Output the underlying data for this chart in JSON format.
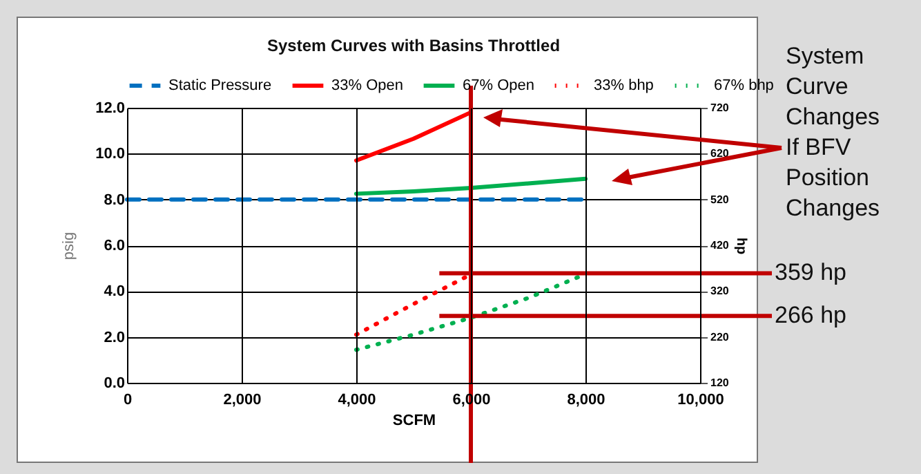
{
  "chart_data": {
    "type": "line",
    "title": "System Curves with Basins Throttled",
    "xlabel": "SCFM",
    "ylabel": "psig",
    "y2label": "hp",
    "xlim": [
      0,
      10000
    ],
    "xticks": [
      0,
      {
        "value": 2000,
        "label": "2,000"
      },
      {
        "value": 4000,
        "label": "4,000"
      },
      {
        "value": 6000,
        "label": "6,000"
      },
      {
        "value": 8000,
        "label": "8,000"
      },
      {
        "value": 10000,
        "label": "10,000"
      }
    ],
    "ylim": [
      0,
      12
    ],
    "yticks": [
      {
        "value": 0,
        "label": "0.0"
      },
      {
        "value": 2,
        "label": "2.0"
      },
      {
        "value": 4,
        "label": "4.0"
      },
      {
        "value": 6,
        "label": "6.0"
      },
      {
        "value": 8,
        "label": "8.0"
      },
      {
        "value": 10,
        "label": "10.0"
      },
      {
        "value": 12,
        "label": "12.0"
      }
    ],
    "y2lim": [
      120,
      720
    ],
    "y2ticks": [
      120,
      220,
      320,
      420,
      520,
      620,
      720
    ],
    "grid": true,
    "legend": "top",
    "marker": "none",
    "series": [
      {
        "name": "Static Pressure",
        "color": "#0070c0",
        "line_style": "dashed",
        "x": [
          0,
          8000
        ],
        "values": [
          8,
          8
        ]
      },
      {
        "name": "33% Open",
        "color": "#ff0000",
        "line_style": "solid",
        "x": [
          4000,
          5000,
          6000
        ],
        "values": [
          9.7,
          10.65,
          11.8
        ]
      },
      {
        "name": "67% Open",
        "color": "#00b050",
        "line_style": "solid",
        "x": [
          4000,
          5000,
          6000,
          7000,
          8000
        ],
        "values": [
          8.25,
          8.35,
          8.5,
          8.7,
          8.9
        ]
      },
      {
        "name": "33% bhp",
        "color": "#ff0000",
        "line_style": "dotted",
        "axis": "y2",
        "x": [
          4000,
          5000,
          5900
        ],
        "values": [
          225,
          292,
          350
        ]
      },
      {
        "name": "67% bhp",
        "color": "#00b050",
        "line_style": "dotted",
        "axis": "y2",
        "x": [
          4000,
          5000,
          6000,
          7000,
          7900
        ],
        "values": [
          192,
          225,
          262,
          305,
          352
        ]
      }
    ],
    "ref_lines": [
      {
        "axis": "x",
        "value": 6000,
        "color": "#c00000"
      },
      {
        "axis": "y2",
        "value": 359,
        "label": "359 hp",
        "color": "#c00000"
      },
      {
        "axis": "y2",
        "value": 266,
        "label": "266 hp",
        "color": "#c00000"
      }
    ],
    "annotations": [
      "System Curve Changes If BFV Position Changes"
    ]
  }
}
